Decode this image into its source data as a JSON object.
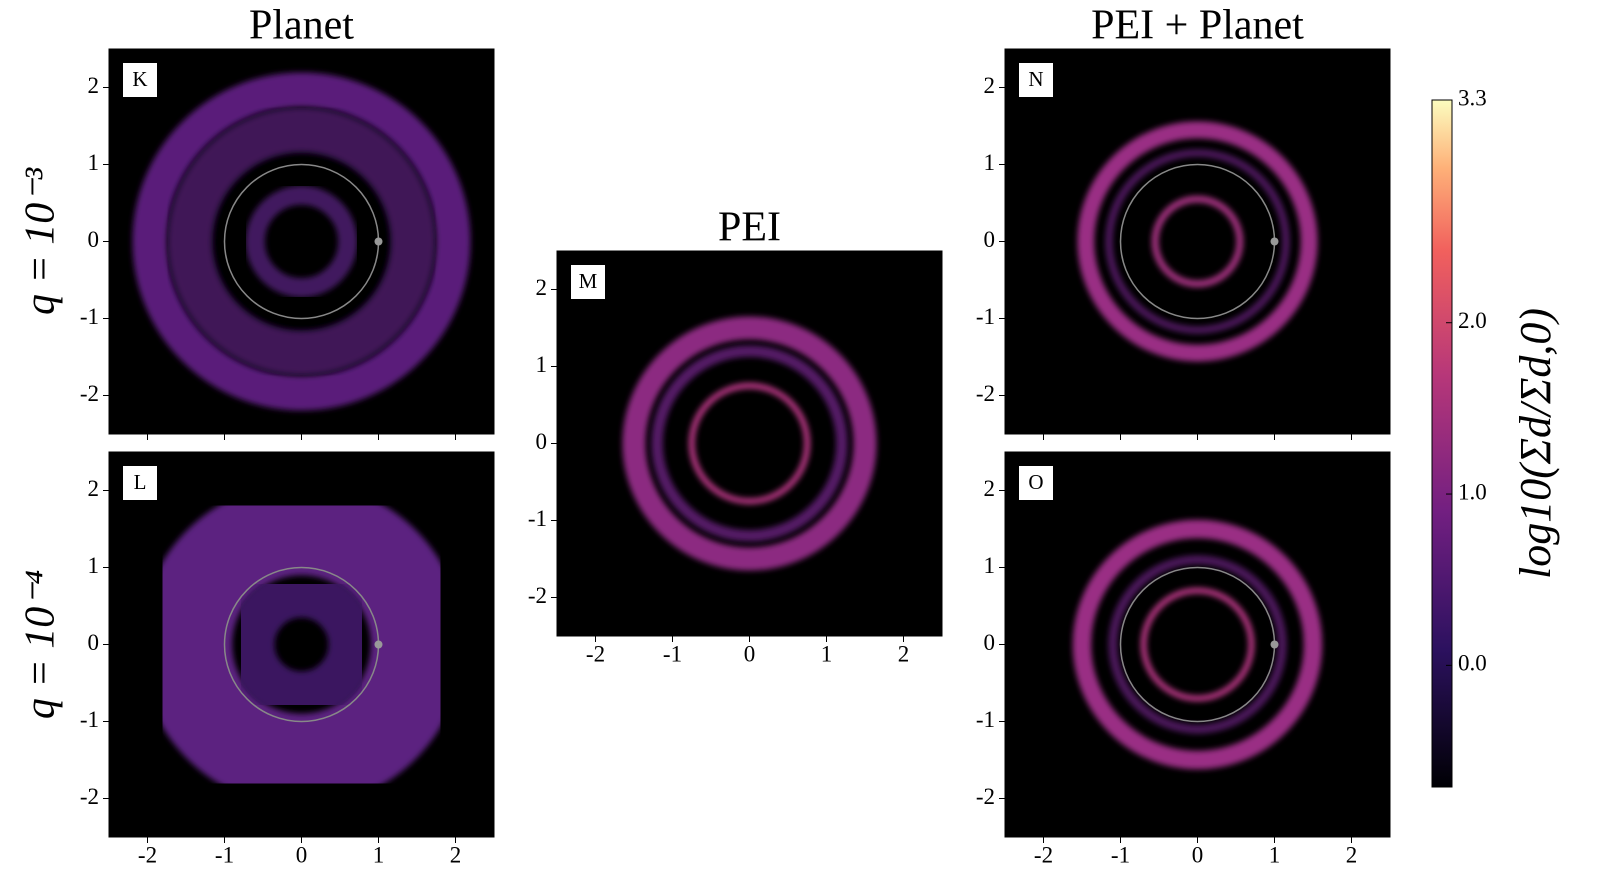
{
  "chart_data": [
    {
      "type": "image",
      "title": "Planet",
      "ylabel": "q = 10⁻³",
      "panel_label": "K",
      "xlim": [
        -2.5,
        2.5
      ],
      "ylim": [
        -2.5,
        2.5
      ],
      "xticks": [
        -2,
        -1,
        0,
        1,
        2
      ],
      "yticks": [
        -2,
        -1,
        0,
        1,
        2
      ],
      "xtick_labels": false
    },
    {
      "type": "image",
      "ylabel": "q = 10⁻⁴",
      "panel_label": "L",
      "xlim": [
        -2.5,
        2.5
      ],
      "ylim": [
        -2.5,
        2.5
      ],
      "xticks": [
        -2,
        -1,
        0,
        1,
        2
      ],
      "yticks": [
        -2,
        -1,
        0,
        1,
        2
      ],
      "xtick_labels": true
    },
    {
      "type": "image",
      "title": "PEI",
      "panel_label": "M",
      "xlim": [
        -2.5,
        2.5
      ],
      "ylim": [
        -2.5,
        2.5
      ],
      "xticks": [
        -2,
        -1,
        0,
        1,
        2
      ],
      "yticks": [
        -2,
        -1,
        0,
        1,
        2
      ],
      "xtick_labels": true
    },
    {
      "type": "image",
      "title": "PEI + Planet",
      "panel_label": "N",
      "xlim": [
        -2.5,
        2.5
      ],
      "ylim": [
        -2.5,
        2.5
      ],
      "xticks": [
        -2,
        -1,
        0,
        1,
        2
      ],
      "yticks": [
        -2,
        -1,
        0,
        1,
        2
      ],
      "xtick_labels": false
    },
    {
      "type": "image",
      "panel_label": "O",
      "xlim": [
        -2.5,
        2.5
      ],
      "ylim": [
        -2.5,
        2.5
      ],
      "xticks": [
        -2,
        -1,
        0,
        1,
        2
      ],
      "yticks": [
        -2,
        -1,
        0,
        1,
        2
      ],
      "xtick_labels": true
    },
    {
      "type": "colorbar",
      "label": "log10(Σd/Σd,0)",
      "lim": [
        -0.71,
        3.3
      ],
      "ticks": [
        {
          "value": 0,
          "label": "0.0"
        },
        {
          "value": 1,
          "label": "1.0"
        },
        {
          "value": 2,
          "label": "2.0"
        },
        3.3
      ]
    }
  ]
}
